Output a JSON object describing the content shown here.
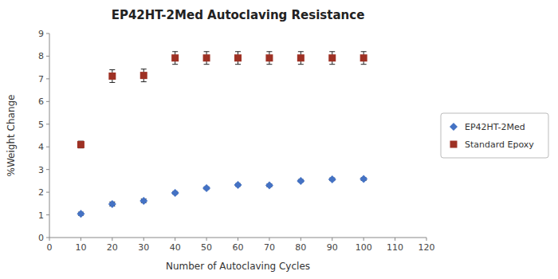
{
  "chart_data": {
    "type": "scatter",
    "title": "EP42HT-2Med Autoclaving Resistance",
    "x_label": "Number of Autoclaving Cycles",
    "y_label": "%Weight Change",
    "x": [
      10,
      20,
      30,
      40,
      50,
      60,
      70,
      80,
      90,
      100
    ],
    "series": [
      {
        "name": "EP42HT-2Med",
        "color": "#4472C4",
        "marker": "diamond",
        "values": [
          1.05,
          1.48,
          1.62,
          1.97,
          2.18,
          2.32,
          2.3,
          2.5,
          2.57,
          2.58
        ],
        "errors": [
          0.07,
          0.09,
          0.08,
          0.06,
          0.06,
          0.06,
          0.06,
          0.06,
          0.06,
          0.06
        ]
      },
      {
        "name": "Standard Epoxy",
        "color": "#9E3124",
        "marker": "square",
        "values": [
          4.1,
          7.12,
          7.15,
          7.92,
          7.92,
          7.92,
          7.92,
          7.92,
          7.92,
          7.92
        ],
        "errors": [
          0.15,
          0.28,
          0.28,
          0.28,
          0.28,
          0.28,
          0.28,
          0.28,
          0.28,
          0.28
        ]
      }
    ],
    "xlim": [
      0,
      120
    ],
    "ylim": [
      0,
      9
    ],
    "xticks": [
      0,
      10,
      20,
      30,
      40,
      50,
      60,
      70,
      80,
      90,
      100,
      110,
      120
    ],
    "yticks": [
      0,
      1,
      2,
      3,
      4,
      5,
      6,
      7,
      8,
      9
    ],
    "grid": false,
    "legend": "right"
  }
}
